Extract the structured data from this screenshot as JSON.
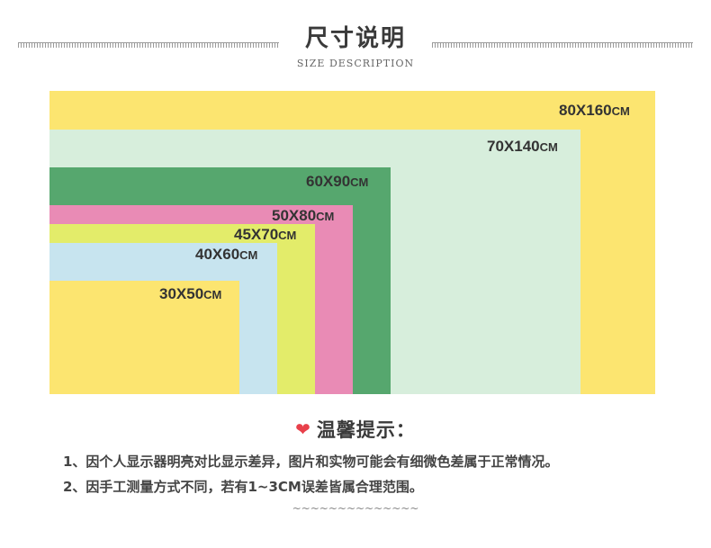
{
  "header": {
    "title": "尺寸说明",
    "subtitle": "SIZE DESCRIPTION"
  },
  "sizes": [
    {
      "dims": "80X160",
      "unit": "CM",
      "color": "#fce570"
    },
    {
      "dims": "70X140",
      "unit": "CM",
      "color": "#d7eedc"
    },
    {
      "dims": "60X90",
      "unit": "CM",
      "color": "#56a76e"
    },
    {
      "dims": "50X80",
      "unit": "CM",
      "color": "#e98bb5"
    },
    {
      "dims": "45X70",
      "unit": "CM",
      "color": "#e3ec6a"
    },
    {
      "dims": "40X60",
      "unit": "CM",
      "color": "#c7e4ef"
    },
    {
      "dims": "30X50",
      "unit": "CM",
      "color": "#fce570"
    }
  ],
  "tips": {
    "heading": "温馨提示：",
    "heart_icon": "heart-icon",
    "heart_color": "#e8404a",
    "lines": [
      "1、因个人显示器明亮对比显示差异，图片和实物可能会有细微色差属于正常情况。",
      "2、因手工测量方式不同，若有1~3CM误差皆属合理范围。"
    ],
    "divider": "~~~~~~~~~~~~~~"
  }
}
